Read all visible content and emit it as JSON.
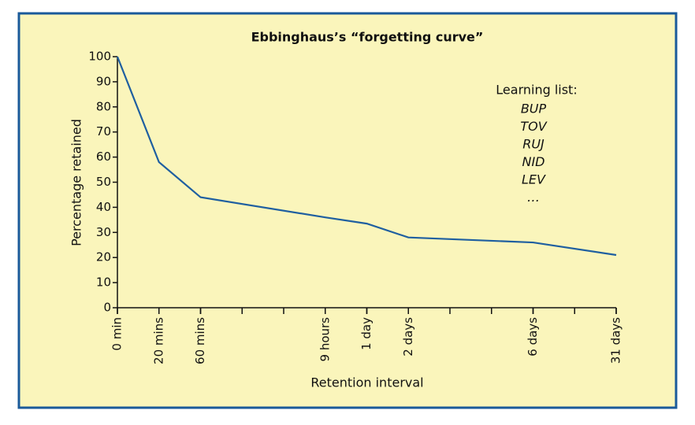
{
  "chart_data": {
    "type": "line",
    "title": "Ebbinghaus’s “forgetting curve”",
    "xlabel": "Retention interval",
    "ylabel": "Percentage retained",
    "x": [
      0,
      1,
      2,
      5,
      6,
      7,
      10,
      12
    ],
    "values": [
      100,
      58,
      44,
      36,
      33.5,
      28,
      26,
      21
    ],
    "color": "#1f5fa0",
    "xlim": [
      0,
      12
    ],
    "xticks": [
      {
        "value": 0,
        "label": "0 min"
      },
      {
        "value": 1,
        "label": "20 mins"
      },
      {
        "value": 2,
        "label": "60 mins"
      },
      {
        "value": 5,
        "label": "9 hours"
      },
      {
        "value": 6,
        "label": "1 day"
      },
      {
        "value": 7,
        "label": "2 days"
      },
      {
        "value": 10,
        "label": "6 days"
      },
      {
        "value": 12,
        "label": "31 days"
      }
    ],
    "ylim": [
      0,
      100
    ],
    "yticks": [
      0,
      10,
      20,
      30,
      40,
      50,
      60,
      70,
      80,
      90,
      100
    ],
    "annotation": {
      "title": "Learning list:",
      "items": [
        "BUP",
        "TOV",
        "RUJ",
        "NID",
        "LEV",
        "…"
      ]
    }
  }
}
